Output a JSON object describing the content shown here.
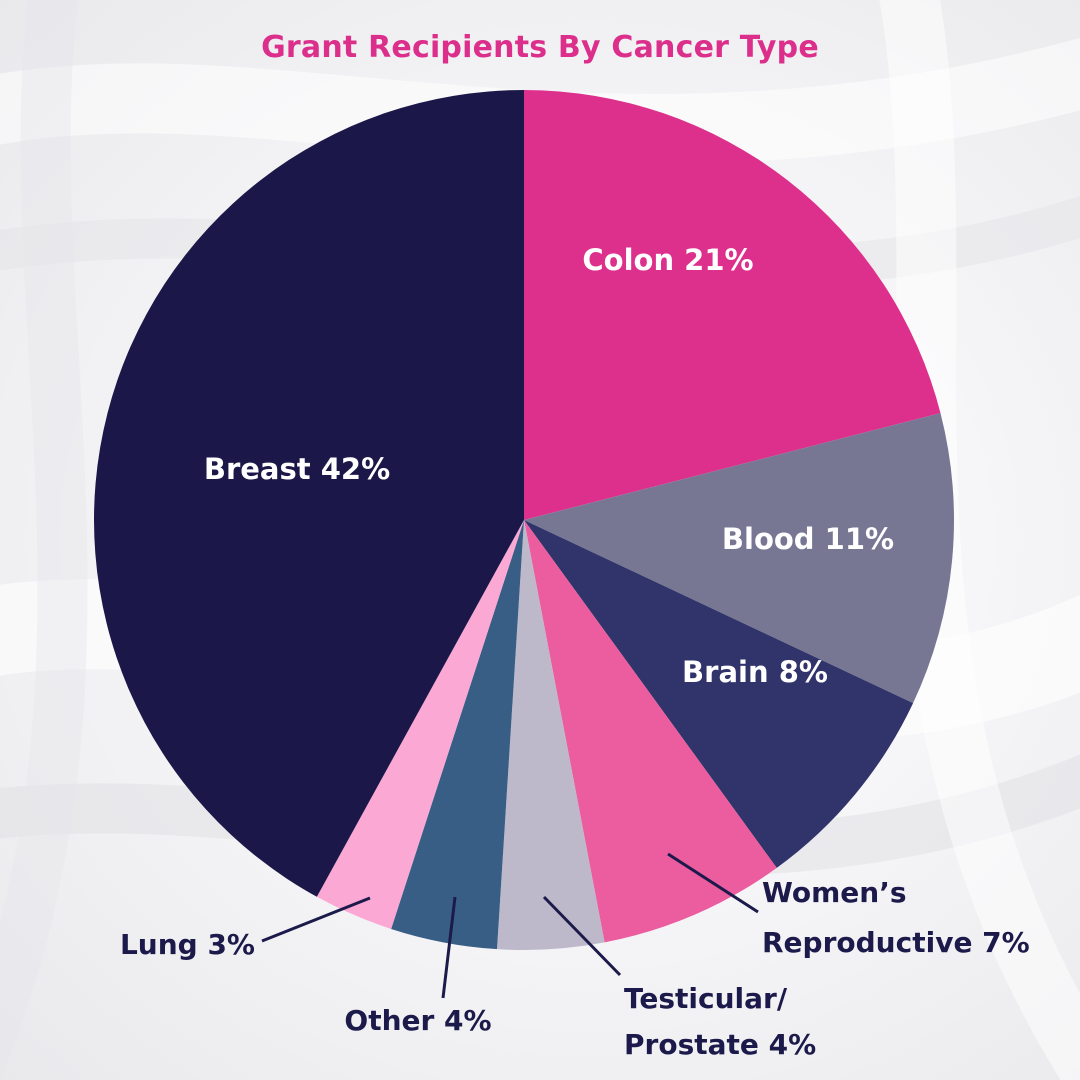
{
  "chart_data": {
    "type": "pie",
    "title": "Grant Recipients By Cancer Type",
    "slices": [
      {
        "label": "Colon 21%",
        "category": "Colon",
        "value": 21,
        "color": "#dd308c",
        "label_placement": "inside"
      },
      {
        "label": "Blood 11%",
        "category": "Blood",
        "value": 11,
        "color": "#777794",
        "label_placement": "inside"
      },
      {
        "label": "Brain 8%",
        "category": "Brain",
        "value": 8,
        "color": "#31346a",
        "label_placement": "inside"
      },
      {
        "label_lines": [
          "Women’s",
          "Reproductive 7%"
        ],
        "category": "Women’s Reproductive",
        "value": 7,
        "color": "#ec5da0",
        "label_placement": "outside"
      },
      {
        "label_lines": [
          "Testicular/",
          "Prostate 4%"
        ],
        "category": "Testicular/Prostate",
        "value": 4,
        "color": "#bdb9cb",
        "label_placement": "outside"
      },
      {
        "label": "Other 4%",
        "category": "Other",
        "value": 4,
        "color": "#395e86",
        "label_placement": "outside"
      },
      {
        "label": "Lung 3%",
        "category": "Lung",
        "value": 3,
        "color": "#fba8d4",
        "label_placement": "outside"
      },
      {
        "label": "Breast 42%",
        "category": "Breast",
        "value": 42,
        "color": "#1b1849",
        "label_placement": "inside"
      }
    ],
    "start": "top",
    "direction": "clockwise",
    "legend": "none",
    "label_color_inside": "#ffffff",
    "label_color_outside": "#1c1a4a",
    "title_color": "#dc2f8c"
  }
}
